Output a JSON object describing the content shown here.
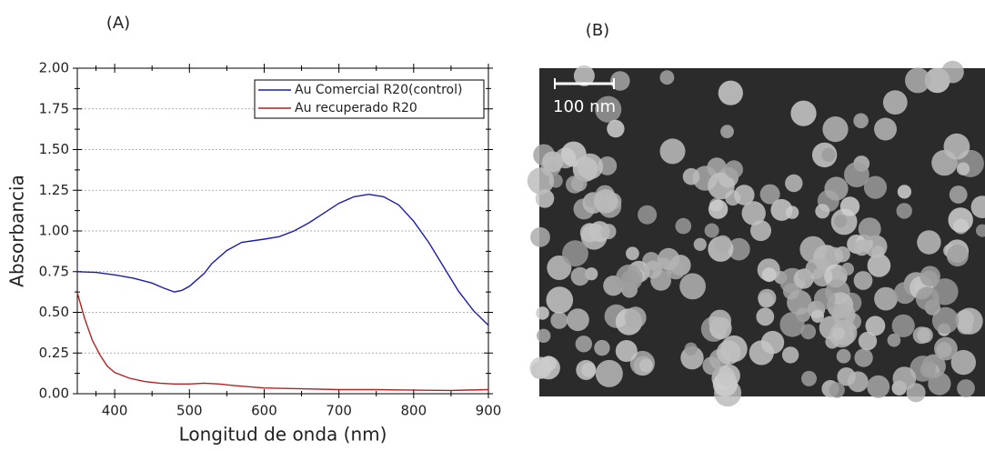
{
  "panels": {
    "label_a": "(A)",
    "label_b": "(B)",
    "scale_bar": "100 nm"
  },
  "chart_data": {
    "type": "line",
    "xlabel": "Longitud de onda (nm)",
    "ylabel": "Absorbancia",
    "xlim": [
      350,
      900
    ],
    "xticks": [
      400,
      500,
      600,
      700,
      800,
      900
    ],
    "ylim": [
      0,
      2
    ],
    "yticks": [
      {
        "value": 0,
        "label": "0.00"
      },
      {
        "value": 0.25,
        "label": "0.25"
      },
      {
        "value": 0.5,
        "label": "0.50"
      },
      {
        "value": 0.75,
        "label": "0.75"
      },
      {
        "value": 1,
        "label": "1.00"
      },
      {
        "value": 1.25,
        "label": "1.25"
      },
      {
        "value": 1.5,
        "label": "1.50"
      },
      {
        "value": 1.75,
        "label": "1.75"
      },
      {
        "value": 2,
        "label": "2.00"
      }
    ],
    "grid": true,
    "legend": "upper right",
    "series": [
      {
        "name": "Au Comercial R20(control)",
        "color": "#1c1caa",
        "x": [
          350,
          375,
          400,
          425,
          450,
          465,
          480,
          490,
          500,
          510,
          520,
          530,
          550,
          570,
          600,
          620,
          640,
          660,
          680,
          700,
          720,
          740,
          760,
          780,
          800,
          820,
          840,
          860,
          880,
          900
        ],
        "values": [
          0.75,
          0.745,
          0.73,
          0.71,
          0.68,
          0.65,
          0.625,
          0.635,
          0.66,
          0.7,
          0.74,
          0.8,
          0.88,
          0.93,
          0.95,
          0.965,
          1.0,
          1.05,
          1.11,
          1.17,
          1.21,
          1.225,
          1.21,
          1.16,
          1.06,
          0.93,
          0.78,
          0.63,
          0.51,
          0.42
        ]
      },
      {
        "name": "Au recuperado R20",
        "color": "#b22222",
        "x": [
          350,
          360,
          370,
          380,
          390,
          400,
          420,
          440,
          460,
          480,
          500,
          520,
          540,
          560,
          600,
          650,
          700,
          750,
          800,
          850,
          900
        ],
        "values": [
          0.62,
          0.46,
          0.33,
          0.24,
          0.17,
          0.13,
          0.095,
          0.075,
          0.065,
          0.06,
          0.06,
          0.065,
          0.06,
          0.05,
          0.035,
          0.03,
          0.025,
          0.025,
          0.022,
          0.02,
          0.025
        ]
      }
    ]
  }
}
